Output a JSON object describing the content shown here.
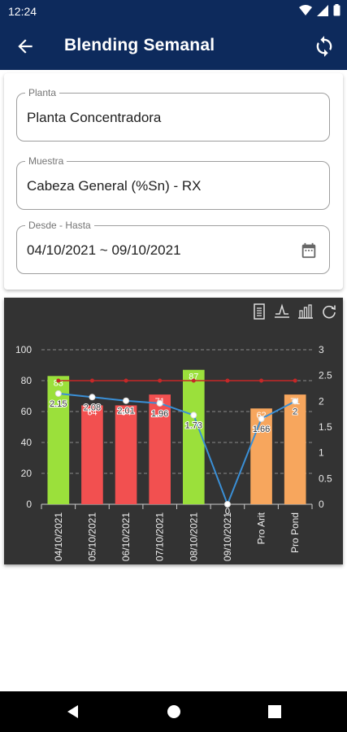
{
  "status": {
    "time": "12:24"
  },
  "appbar": {
    "title": "Blending Semanal",
    "back_icon": "arrow-back-icon",
    "sync_icon": "sync-icon"
  },
  "form": {
    "planta": {
      "label": "Planta",
      "value": "Planta Concentradora"
    },
    "muestra": {
      "label": "Muestra",
      "value": "Cabeza General (%Sn) - RX"
    },
    "rango": {
      "label": "Desde - Hasta",
      "value": "04/10/2021 ~ 09/10/2021",
      "icon": "calendar-icon"
    }
  },
  "chart_toolbar": [
    "data-view-icon",
    "line-chart-icon",
    "bar-chart-icon",
    "restore-icon"
  ],
  "chart_data": {
    "type": "bar",
    "categories": [
      "04/10/2021",
      "05/10/2021",
      "06/10/2021",
      "07/10/2021",
      "08/10/2021",
      "09/10/2021",
      "Pro Arit",
      "Pro Pond"
    ],
    "y_left": {
      "min": 0,
      "max": 100,
      "ticks": [
        "0",
        "20",
        "40",
        "60",
        "80",
        "100"
      ]
    },
    "y_right": {
      "min": 0,
      "max": 3,
      "ticks": [
        "0",
        "0.5",
        "1",
        "1.5",
        "2",
        "2.5",
        "3"
      ]
    },
    "bars": {
      "values": [
        83,
        64,
        64,
        71,
        87,
        0,
        62,
        71
      ],
      "labels": [
        "83",
        "64",
        "64",
        "71",
        "87",
        "0",
        "62",
        "71"
      ],
      "colors": [
        "#9be03b",
        "#f25050",
        "#f25050",
        "#f25050",
        "#9be03b",
        "#f25050",
        "#f7a65d",
        "#f7a65d"
      ]
    },
    "line": {
      "values": [
        2.15,
        2.08,
        2.01,
        1.96,
        1.73,
        0,
        1.66,
        2
      ],
      "labels": [
        "2.15",
        "2.08",
        "2.01",
        "1.96",
        "1.73",
        "0",
        "1.66",
        "2"
      ],
      "color": "#3a8fd6"
    },
    "target_line": {
      "value": 2.4,
      "color": "#c62828"
    },
    "grid": true
  },
  "nav": {
    "back": "nav-back-icon",
    "home": "nav-home-icon",
    "recents": "nav-recents-icon"
  }
}
